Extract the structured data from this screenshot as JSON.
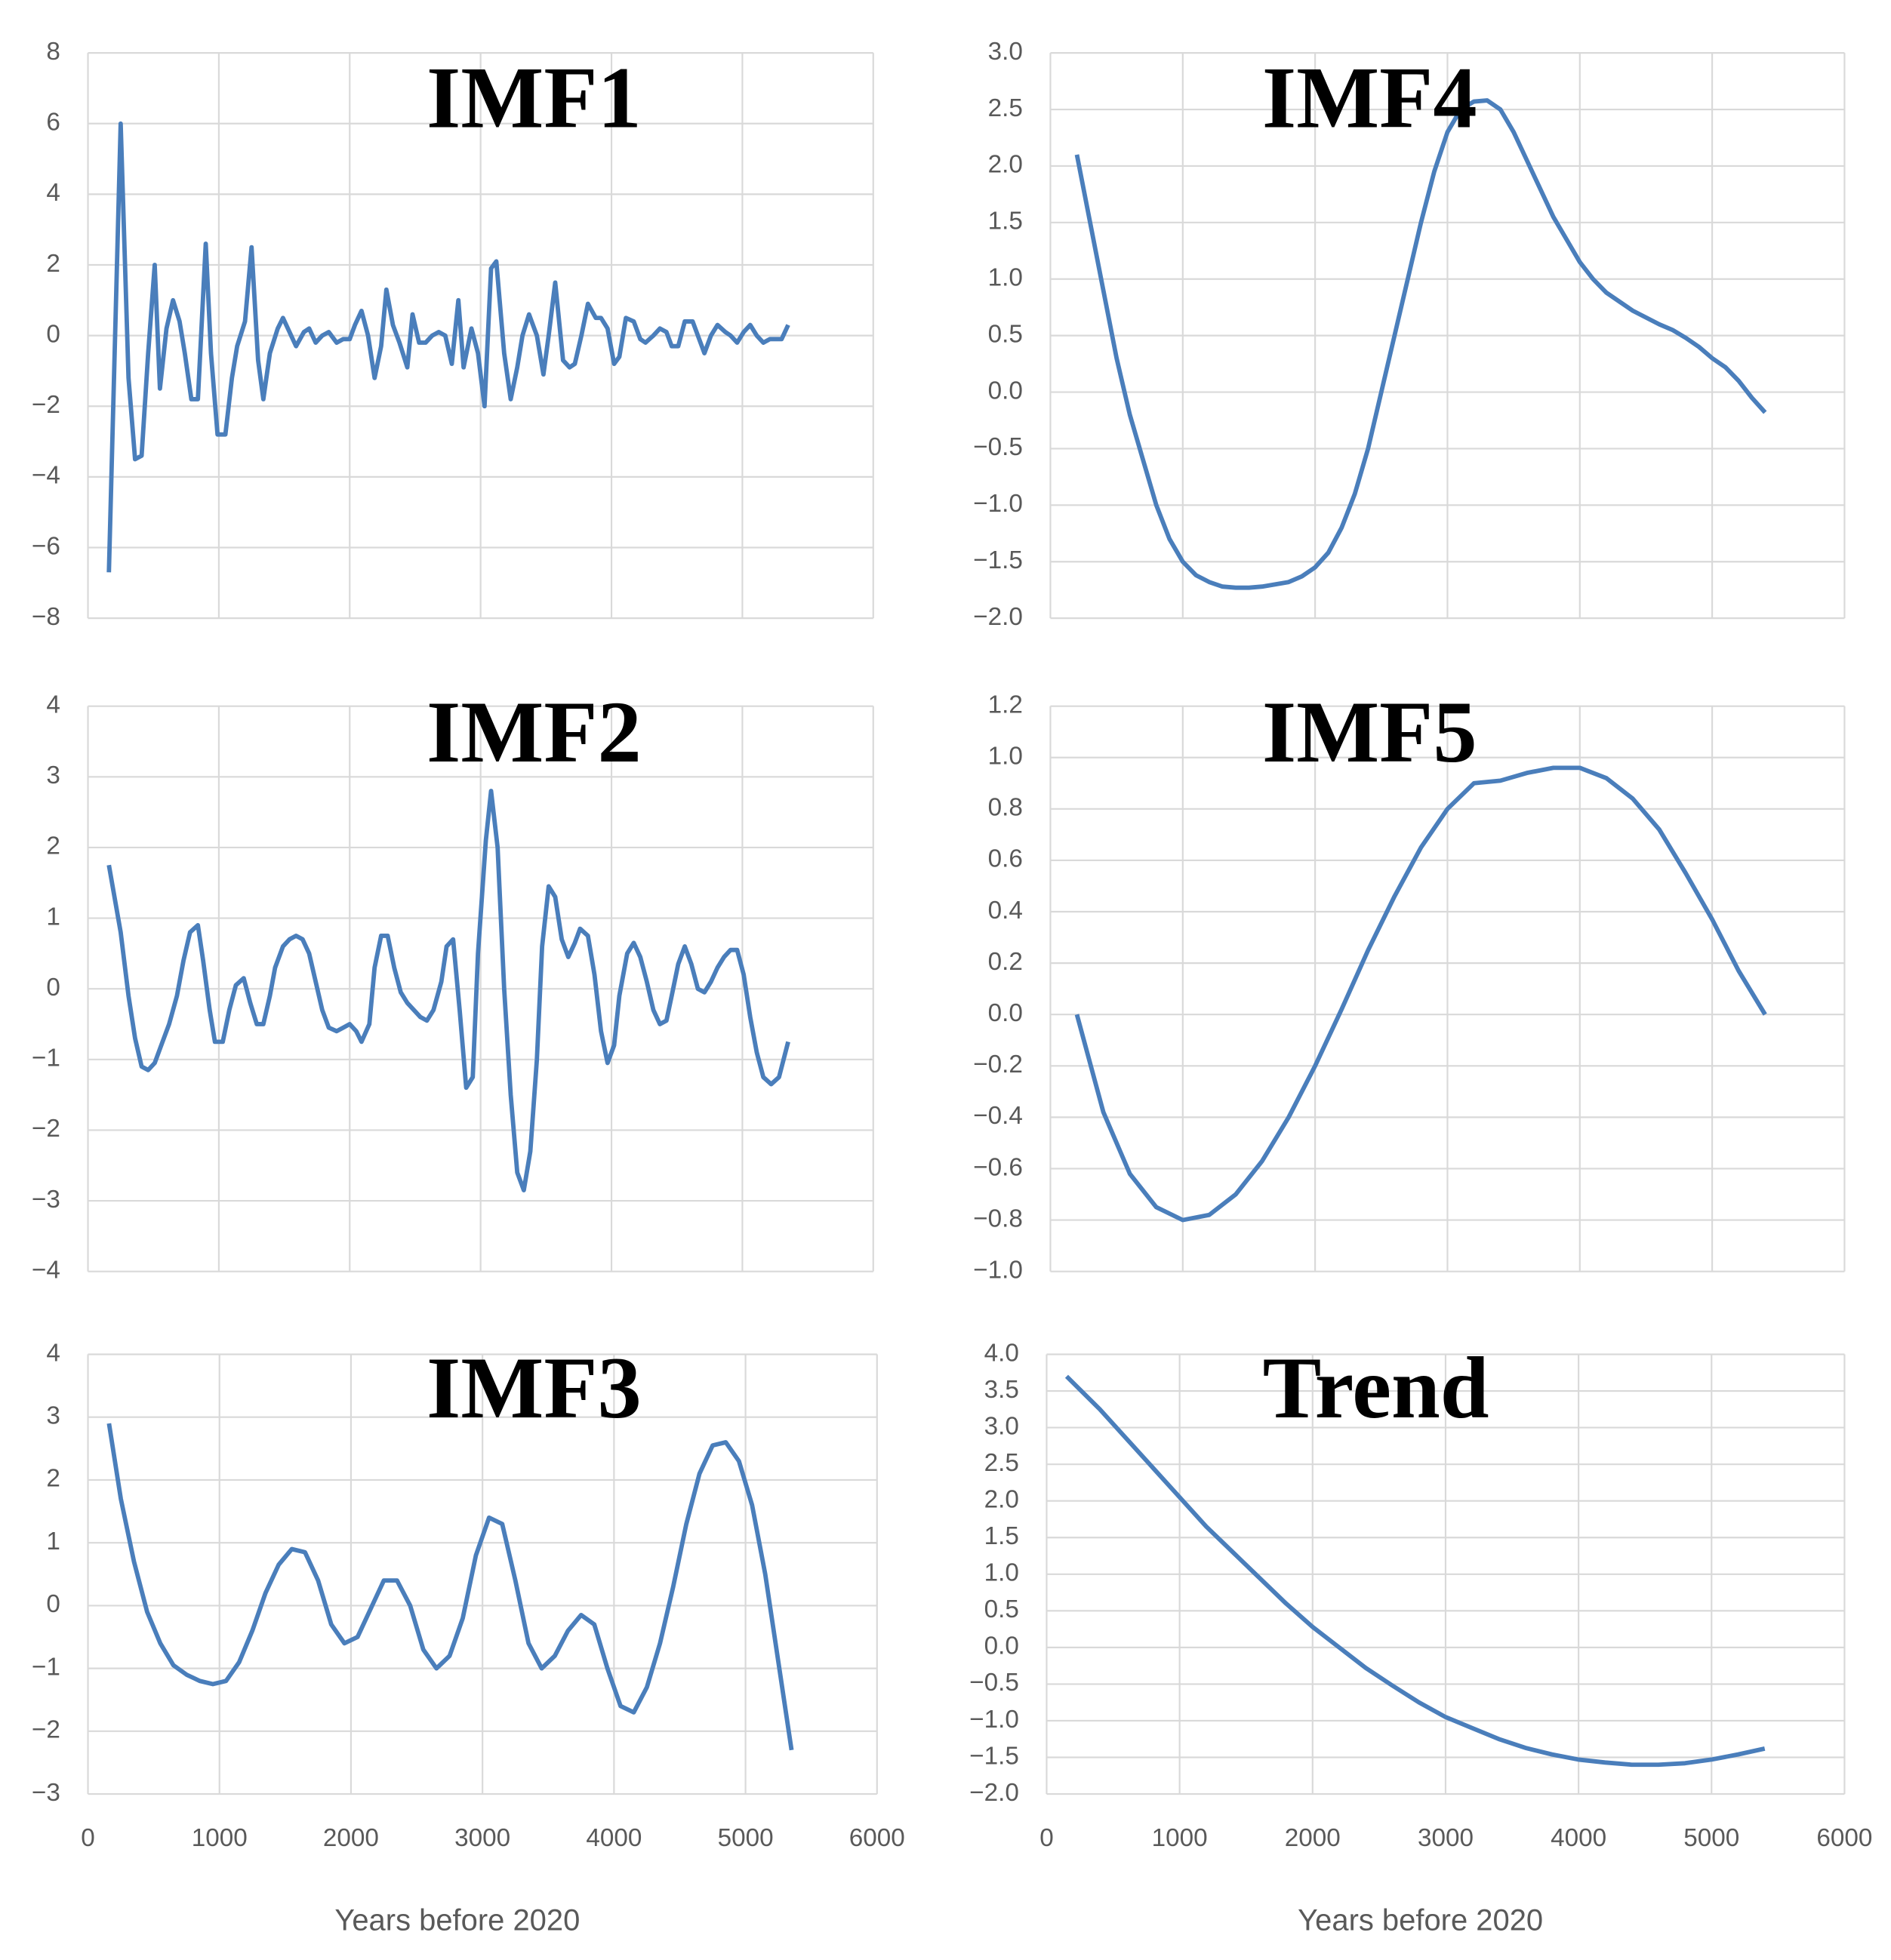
{
  "chart_data": [
    {
      "type": "line",
      "title": "IMF1",
      "xlim": [
        0,
        6000
      ],
      "xticks": [
        0,
        1000,
        2000,
        3000,
        4000,
        5000,
        6000
      ],
      "show_xtick_labels": false,
      "ylim": [
        -8,
        8
      ],
      "yticks": [
        {
          "value": -8,
          "label": "−8"
        },
        {
          "value": -6,
          "label": "−6"
        },
        {
          "value": -4,
          "label": "−4"
        },
        {
          "value": -2,
          "label": "−2"
        },
        0,
        2,
        4,
        6,
        8
      ],
      "grid": true,
      "series": [
        {
          "color": "#4a7ebb",
          "x": [
            160,
            250,
            310,
            360,
            410,
            460,
            510,
            550,
            600,
            650,
            700,
            740,
            790,
            840,
            900,
            940,
            990,
            1050,
            1100,
            1140,
            1200,
            1250,
            1300,
            1340,
            1390,
            1450,
            1490,
            1540,
            1590,
            1650,
            1690,
            1740,
            1790,
            1840,
            1900,
            1950,
            2000,
            2040,
            2090,
            2140,
            2190,
            2240,
            2280,
            2330,
            2380,
            2440,
            2480,
            2530,
            2580,
            2630,
            2680,
            2730,
            2780,
            2830,
            2870,
            2930,
            2980,
            3030,
            3080,
            3120,
            3180,
            3230,
            3280,
            3320,
            3370,
            3430,
            3480,
            3520,
            3570,
            3630,
            3680,
            3720,
            3770,
            3820,
            3880,
            3920,
            3970,
            4020,
            4060,
            4110,
            4170,
            4220,
            4260,
            4320,
            4370,
            4420,
            4460,
            4510,
            4560,
            4620,
            4660,
            4710,
            4760,
            4810,
            4870,
            4910,
            4960,
            5010,
            5060,
            5110,
            5160,
            5210,
            5250,
            5300,
            5350
          ],
          "values": [
            -6.7,
            6.0,
            -1.2,
            -3.5,
            -3.4,
            -0.5,
            2.0,
            -1.5,
            0.2,
            1.0,
            0.4,
            -0.5,
            -1.8,
            -1.8,
            2.6,
            -0.5,
            -2.8,
            -2.8,
            -1.2,
            -0.3,
            0.4,
            2.5,
            -0.7,
            -1.8,
            -0.5,
            0.2,
            0.5,
            0.1,
            -0.3,
            0.1,
            0.2,
            -0.2,
            0,
            0.1,
            -0.2,
            -0.1,
            -0.1,
            0.3,
            0.7,
            0,
            -1.2,
            -0.3,
            1.3,
            0.3,
            -0.2,
            -0.9,
            0.6,
            -0.2,
            -0.2,
            0,
            0.1,
            0,
            -0.8,
            1.0,
            -0.9,
            0.2,
            -0.5,
            -2.0,
            1.9,
            2.1,
            -0.5,
            -1.8,
            -0.9,
            0,
            0.6,
            0,
            -1.1,
            0,
            1.5,
            -0.7,
            -0.9,
            -0.8,
            0,
            0.9,
            0.5,
            0.5,
            0.2,
            -0.8,
            -0.6,
            0.5,
            0.4,
            -0.1,
            -0.2,
            0,
            0.2,
            0.1,
            -0.3,
            -0.3,
            0.4,
            0.4,
            0,
            -0.5,
            0,
            0.3,
            0.1,
            0,
            -0.2,
            0.1,
            0.3,
            0,
            -0.2,
            -0.1,
            -0.1,
            -0.1,
            0.3
          ]
        }
      ]
    },
    {
      "type": "line",
      "title": "IMF4",
      "xlim": [
        0,
        6000
      ],
      "xticks": [
        0,
        1000,
        2000,
        3000,
        4000,
        5000,
        6000
      ],
      "show_xtick_labels": false,
      "ylim": [
        -2,
        3
      ],
      "yticks": [
        {
          "value": -2,
          "label": "−2.0"
        },
        {
          "value": -1.5,
          "label": "−1.5"
        },
        {
          "value": -1,
          "label": "−1.0"
        },
        {
          "value": -0.5,
          "label": "−0.5"
        },
        {
          "value": 0,
          "label": "0.0"
        },
        0.5,
        {
          "value": 1,
          "label": "1.0"
        },
        1.5,
        {
          "value": 2,
          "label": "2.0"
        },
        2.5,
        {
          "value": 3,
          "label": "3.0"
        }
      ],
      "grid": true,
      "series": [
        {
          "color": "#4a7ebb",
          "x": [
            200,
            300,
            400,
            500,
            600,
            700,
            800,
            900,
            1000,
            1100,
            1200,
            1300,
            1400,
            1500,
            1600,
            1700,
            1800,
            1900,
            2000,
            2100,
            2200,
            2300,
            2400,
            2500,
            2600,
            2700,
            2800,
            2900,
            3000,
            3100,
            3200,
            3300,
            3400,
            3500,
            3600,
            3700,
            3800,
            3900,
            4000,
            4100,
            4200,
            4300,
            4400,
            4500,
            4600,
            4700,
            4800,
            4900,
            5000,
            5100,
            5200,
            5300,
            5400
          ],
          "values": [
            2.1,
            1.5,
            0.9,
            0.3,
            -0.2,
            -0.6,
            -1.0,
            -1.3,
            -1.5,
            -1.62,
            -1.68,
            -1.72,
            -1.73,
            -1.73,
            -1.72,
            -1.7,
            -1.68,
            -1.63,
            -1.55,
            -1.42,
            -1.2,
            -0.9,
            -0.5,
            0.0,
            0.5,
            1.0,
            1.5,
            1.95,
            2.3,
            2.5,
            2.57,
            2.58,
            2.5,
            2.3,
            2.05,
            1.8,
            1.55,
            1.35,
            1.15,
            1.0,
            0.88,
            0.8,
            0.72,
            0.66,
            0.6,
            0.55,
            0.48,
            0.4,
            0.3,
            0.22,
            0.1,
            -0.05,
            -0.18
          ]
        }
      ]
    },
    {
      "type": "line",
      "title": "IMF2",
      "xlim": [
        0,
        6000
      ],
      "xticks": [
        0,
        1000,
        2000,
        3000,
        4000,
        5000,
        6000
      ],
      "show_xtick_labels": false,
      "ylim": [
        -4,
        4
      ],
      "yticks": [
        {
          "value": -4,
          "label": "−4"
        },
        {
          "value": -3,
          "label": "−3"
        },
        {
          "value": -2,
          "label": "−2"
        },
        {
          "value": -1,
          "label": "−1"
        },
        0,
        1,
        2,
        3,
        4
      ],
      "grid": true,
      "series": [
        {
          "color": "#4a7ebb",
          "x": [
            160,
            250,
            310,
            360,
            410,
            460,
            510,
            560,
            620,
            680,
            730,
            780,
            840,
            880,
            930,
            970,
            1030,
            1080,
            1130,
            1190,
            1240,
            1290,
            1340,
            1390,
            1430,
            1490,
            1540,
            1590,
            1640,
            1690,
            1740,
            1790,
            1840,
            1900,
            1950,
            2000,
            2050,
            2090,
            2150,
            2190,
            2240,
            2290,
            2340,
            2390,
            2440,
            2490,
            2540,
            2590,
            2640,
            2700,
            2740,
            2790,
            2840,
            2890,
            2940,
            2980,
            3040,
            3080,
            3130,
            3180,
            3230,
            3280,
            3330,
            3380,
            3430,
            3470,
            3520,
            3570,
            3620,
            3670,
            3720,
            3760,
            3820,
            3870,
            3920,
            3970,
            4020,
            4060,
            4120,
            4170,
            4220,
            4270,
            4320,
            4370,
            4420,
            4460,
            4510,
            4560,
            4610,
            4660,
            4710,
            4760,
            4810,
            4860,
            4910,
            4960,
            5010,
            5060,
            5110,
            5160,
            5220,
            5280,
            5350
          ],
          "values": [
            1.75,
            0.8,
            -0.1,
            -0.7,
            -1.1,
            -1.15,
            -1.05,
            -0.8,
            -0.5,
            -0.1,
            0.4,
            0.8,
            0.9,
            0.4,
            -0.3,
            -0.75,
            -0.75,
            -0.3,
            0.05,
            0.15,
            -0.2,
            -0.5,
            -0.5,
            -0.1,
            0.3,
            0.6,
            0.7,
            0.75,
            0.7,
            0.5,
            0.1,
            -0.3,
            -0.55,
            -0.6,
            -0.55,
            -0.5,
            -0.6,
            -0.75,
            -0.5,
            0.3,
            0.75,
            0.75,
            0.3,
            -0.05,
            -0.2,
            -0.3,
            -0.4,
            -0.45,
            -0.3,
            0.1,
            0.6,
            0.7,
            -0.3,
            -1.4,
            -1.25,
            0.5,
            2.1,
            2.8,
            2.0,
            0,
            -1.5,
            -2.6,
            -2.85,
            -2.3,
            -1.0,
            0.6,
            1.45,
            1.3,
            0.7,
            0.45,
            0.65,
            0.85,
            0.75,
            0.2,
            -0.6,
            -1.05,
            -0.8,
            -0.1,
            0.5,
            0.65,
            0.45,
            0.1,
            -0.3,
            -0.5,
            -0.45,
            -0.1,
            0.35,
            0.6,
            0.35,
            0,
            -0.05,
            0.1,
            0.3,
            0.45,
            0.55,
            0.55,
            0.2,
            -0.4,
            -0.9,
            -1.25,
            -1.35,
            -1.25,
            -0.75
          ]
        }
      ]
    },
    {
      "type": "line",
      "title": "IMF5",
      "xlim": [
        0,
        6000
      ],
      "xticks": [
        0,
        1000,
        2000,
        3000,
        4000,
        5000,
        6000
      ],
      "show_xtick_labels": false,
      "ylim": [
        -1,
        1.2
      ],
      "yticks": [
        {
          "value": -1,
          "label": "−1.0"
        },
        {
          "value": -0.8,
          "label": "−0.8"
        },
        {
          "value": -0.6,
          "label": "−0.6"
        },
        {
          "value": -0.4,
          "label": "−0.4"
        },
        {
          "value": -0.2,
          "label": "−0.2"
        },
        {
          "value": 0,
          "label": "0.0"
        },
        0.2,
        0.4,
        0.6,
        0.8,
        {
          "value": 1,
          "label": "1.0"
        },
        1.2
      ],
      "grid": true,
      "series": [
        {
          "color": "#4a7ebb",
          "x": [
            200,
            400,
            600,
            800,
            1000,
            1200,
            1400,
            1600,
            1800,
            2000,
            2200,
            2400,
            2600,
            2800,
            3000,
            3200,
            3400,
            3600,
            3800,
            4000,
            4200,
            4400,
            4600,
            4800,
            5000,
            5200,
            5400
          ],
          "values": [
            0.0,
            -0.38,
            -0.62,
            -0.75,
            -0.8,
            -0.78,
            -0.7,
            -0.57,
            -0.4,
            -0.2,
            0.02,
            0.25,
            0.46,
            0.65,
            0.8,
            0.9,
            0.91,
            0.94,
            0.96,
            0.96,
            0.92,
            0.84,
            0.72,
            0.55,
            0.37,
            0.17,
            0.0
          ]
        }
      ]
    },
    {
      "type": "line",
      "title": "IMF3",
      "xlabel": "Years before 2020",
      "xlim": [
        0,
        6000
      ],
      "xticks": [
        0,
        1000,
        2000,
        3000,
        4000,
        5000,
        6000
      ],
      "show_xtick_labels": true,
      "ylim": [
        -3,
        4
      ],
      "yticks": [
        {
          "value": -3,
          "label": "−3"
        },
        {
          "value": -2,
          "label": "−2"
        },
        {
          "value": -1,
          "label": "−1"
        },
        0,
        1,
        2,
        3,
        4
      ],
      "grid": true,
      "series": [
        {
          "color": "#4a7ebb",
          "x": [
            160,
            250,
            350,
            450,
            550,
            650,
            750,
            850,
            950,
            1050,
            1150,
            1250,
            1350,
            1450,
            1550,
            1650,
            1750,
            1850,
            1950,
            2050,
            2150,
            2250,
            2350,
            2450,
            2550,
            2650,
            2750,
            2850,
            2950,
            3050,
            3150,
            3250,
            3350,
            3450,
            3550,
            3650,
            3750,
            3850,
            3950,
            4050,
            4150,
            4250,
            4350,
            4450,
            4550,
            4650,
            4750,
            4850,
            4950,
            5050,
            5150,
            5250,
            5350
          ],
          "values": [
            2.9,
            1.7,
            0.7,
            -0.1,
            -0.6,
            -0.95,
            -1.1,
            -1.2,
            -1.25,
            -1.2,
            -0.9,
            -0.4,
            0.2,
            0.65,
            0.9,
            0.85,
            0.4,
            -0.3,
            -0.6,
            -0.5,
            -0.05,
            0.4,
            0.4,
            0.0,
            -0.7,
            -1.0,
            -0.8,
            -0.2,
            0.8,
            1.4,
            1.3,
            0.4,
            -0.6,
            -1.0,
            -0.8,
            -0.4,
            -0.15,
            -0.3,
            -1.0,
            -1.6,
            -1.7,
            -1.3,
            -0.6,
            0.3,
            1.3,
            2.1,
            2.55,
            2.6,
            2.3,
            1.6,
            0.5,
            -0.9,
            -2.3
          ]
        }
      ]
    },
    {
      "type": "line",
      "title": "Trend",
      "xlabel": "Years before 2020",
      "xlim": [
        0,
        6000
      ],
      "xticks": [
        0,
        1000,
        2000,
        3000,
        4000,
        5000,
        6000
      ],
      "show_xtick_labels": true,
      "ylim": [
        -2,
        4
      ],
      "yticks": [
        {
          "value": -2,
          "label": "−2.0"
        },
        {
          "value": -1.5,
          "label": "−1.5"
        },
        {
          "value": -1,
          "label": "−1.0"
        },
        {
          "value": -0.5,
          "label": "−0.5"
        },
        {
          "value": 0,
          "label": "0.0"
        },
        0.5,
        {
          "value": 1,
          "label": "1.0"
        },
        1.5,
        {
          "value": 2,
          "label": "2.0"
        },
        2.5,
        {
          "value": 3,
          "label": "3.0"
        },
        3.5,
        {
          "value": 4,
          "label": "4.0"
        }
      ],
      "grid": true,
      "series": [
        {
          "color": "#4a7ebb",
          "x": [
            150,
            400,
            600,
            800,
            1000,
            1200,
            1400,
            1600,
            1800,
            2000,
            2200,
            2400,
            2600,
            2800,
            3000,
            3200,
            3400,
            3600,
            3800,
            4000,
            4200,
            4400,
            4600,
            4800,
            5000,
            5200,
            5400
          ],
          "values": [
            3.7,
            3.25,
            2.85,
            2.45,
            2.05,
            1.65,
            1.3,
            0.95,
            0.6,
            0.28,
            0.0,
            -0.28,
            -0.52,
            -0.75,
            -0.95,
            -1.1,
            -1.25,
            -1.37,
            -1.46,
            -1.53,
            -1.57,
            -1.6,
            -1.6,
            -1.58,
            -1.53,
            -1.46,
            -1.38
          ]
        }
      ]
    }
  ]
}
